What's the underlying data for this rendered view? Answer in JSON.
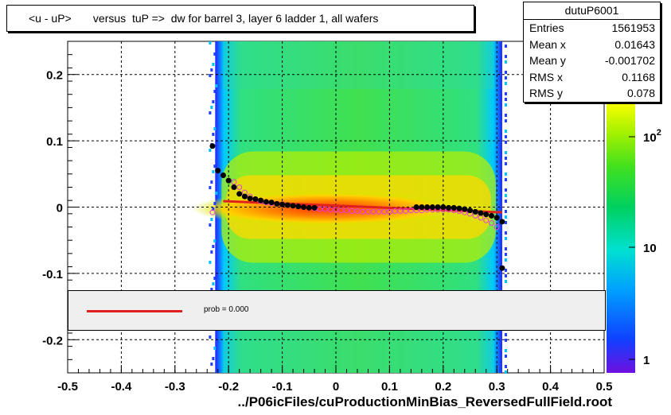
{
  "title": "<u - uP>       versus  tuP =>  dw for barrel 3, layer 6 ladder 1, all wafers",
  "stats": {
    "name": "dutuP6001",
    "rows": [
      {
        "label": "Entries",
        "value": "1561953"
      },
      {
        "label": "Mean x",
        "value": "0.01643"
      },
      {
        "label": "Mean y",
        "value": "-0.001702"
      },
      {
        "label": "RMS x",
        "value": "0.1168"
      },
      {
        "label": "RMS y",
        "value": "0.078"
      }
    ]
  },
  "legend": {
    "fit_label": "prob = 0.000"
  },
  "x_axis_title": "../P06icFiles/cuProductionMinBias_ReversedFullField.root",
  "colors": {
    "fit_line": "#e0201e",
    "profile_markers": "#000000",
    "open_markers": "#e040e0"
  },
  "chart_data": {
    "type": "heatmap",
    "xlim": [
      -0.5,
      0.5
    ],
    "ylim": [
      -0.25,
      0.25
    ],
    "x_ticks": [
      "-0.5",
      "-0.4",
      "-0.3",
      "-0.2",
      "-0.1",
      "0",
      "0.1",
      "0.2",
      "0.3",
      "0.4",
      "0.5"
    ],
    "y_ticks": [
      "-0.2",
      "-0.1",
      "0",
      "0.1",
      "0.2"
    ],
    "grid": true,
    "log_z": true,
    "z_ticks": [
      "1",
      "10",
      "10^2"
    ],
    "populated_x_range": [
      -0.225,
      0.31
    ],
    "fit_line": {
      "x": [
        -0.21,
        0.31
      ],
      "y": [
        0.009,
        -0.008
      ]
    },
    "profile_filled": {
      "x": [
        -0.23,
        -0.22,
        -0.21,
        -0.2,
        -0.19,
        -0.18,
        -0.17,
        -0.16,
        -0.15,
        -0.14,
        -0.13,
        -0.12,
        -0.11,
        -0.1,
        -0.09,
        -0.08,
        -0.07,
        -0.06,
        -0.05,
        -0.04,
        0.15,
        0.16,
        0.17,
        0.18,
        0.19,
        0.2,
        0.21,
        0.22,
        0.23,
        0.24,
        0.25,
        0.26,
        0.27,
        0.28,
        0.29,
        0.3,
        0.31
      ],
      "y": [
        0.092,
        0.055,
        0.048,
        0.04,
        0.03,
        0.02,
        0.016,
        0.013,
        0.012,
        0.01,
        0.008,
        0.007,
        0.005,
        0.004,
        0.003,
        0.002,
        0.001,
        0.0,
        -0.001,
        -0.001,
        0.0,
        0.0,
        0.0,
        0.0,
        0.0,
        0.0,
        -0.001,
        -0.001,
        -0.002,
        -0.003,
        -0.005,
        -0.007,
        -0.009,
        -0.011,
        -0.013,
        -0.016,
        -0.022
      ]
    },
    "profile_open": {
      "x": [
        -0.23,
        -0.19,
        -0.18,
        -0.17,
        -0.16,
        -0.15,
        -0.14,
        -0.13,
        -0.12,
        -0.11,
        -0.1,
        -0.09,
        -0.08,
        -0.07,
        -0.06,
        -0.05,
        -0.04,
        -0.03,
        -0.02,
        -0.01,
        0.0,
        0.01,
        0.02,
        0.03,
        0.04,
        0.05,
        0.06,
        0.07,
        0.08,
        0.09,
        0.1,
        0.11,
        0.12,
        0.13,
        0.14,
        0.15,
        0.16,
        0.17,
        0.18,
        0.19,
        0.2,
        0.21,
        0.22,
        0.23,
        0.24,
        0.25,
        0.26,
        0.27,
        0.28,
        0.29,
        0.3
      ],
      "y": [
        -0.008,
        0.038,
        0.03,
        0.022,
        0.016,
        0.012,
        0.009,
        0.007,
        0.006,
        0.005,
        0.004,
        0.003,
        0.002,
        0.001,
        0.0,
        -0.001,
        -0.002,
        -0.003,
        -0.003,
        -0.004,
        -0.004,
        -0.005,
        -0.005,
        -0.006,
        -0.006,
        -0.007,
        -0.007,
        -0.007,
        -0.007,
        -0.007,
        -0.007,
        -0.006,
        -0.006,
        -0.006,
        -0.005,
        -0.005,
        -0.005,
        -0.004,
        -0.004,
        -0.004,
        -0.004,
        -0.004,
        -0.005,
        -0.006,
        -0.008,
        -0.01,
        -0.013,
        -0.016,
        -0.02,
        -0.024,
        -0.03
      ]
    }
  }
}
